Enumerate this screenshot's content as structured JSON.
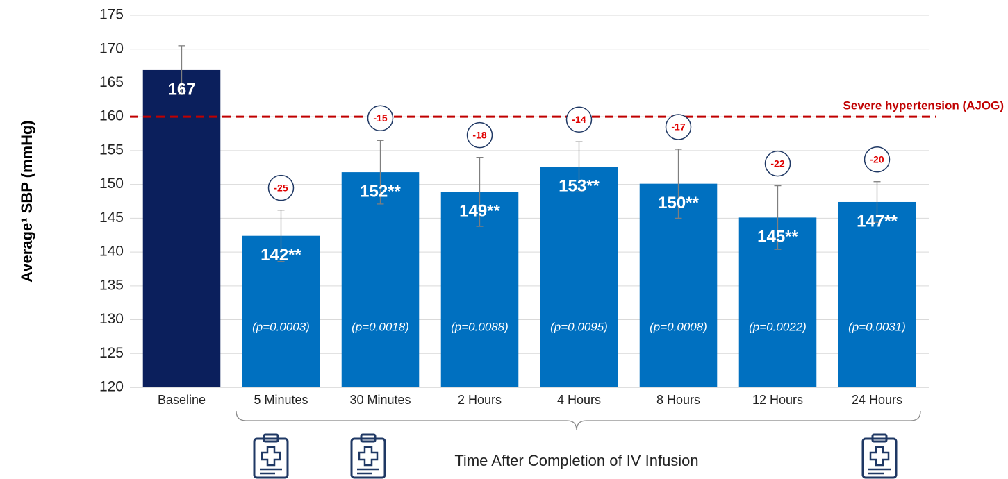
{
  "chart_data": {
    "type": "bar",
    "y_axis_label": "Average¹ SBP (mmHg)",
    "x_axis_label": "Time After Completion of IV Infusion",
    "categories": [
      "Baseline",
      "5 Minutes",
      "30 Minutes",
      "2 Hours",
      "4 Hours",
      "8 Hours",
      "12 Hours",
      "24 Hours"
    ],
    "values": [
      166.9,
      142.4,
      151.8,
      148.9,
      152.6,
      150.1,
      145.1,
      147.4
    ],
    "value_labels": [
      "167",
      "142**",
      "152**",
      "149**",
      "153**",
      "150**",
      "145**",
      "147**"
    ],
    "errors": [
      3.6,
      3.8,
      4.7,
      5.1,
      3.7,
      5.1,
      4.7,
      3.0
    ],
    "changes": [
      null,
      -25,
      -15,
      -18,
      -14,
      -17,
      -22,
      -20
    ],
    "p_labels": [
      null,
      "(p=0.0003)",
      "(p=0.0018)",
      "(p=0.0088)",
      "(p=0.0095)",
      "(p=0.0008)",
      "(p=0.0022)",
      "(p=0.0031)"
    ],
    "colors": [
      "#0b1f5c",
      "#0070c0",
      "#0070c0",
      "#0070c0",
      "#0070c0",
      "#0070c0",
      "#0070c0",
      "#0070c0"
    ],
    "reference_line": {
      "value": 160,
      "label": "Severe hypertension (AJOG)",
      "color": "#c00000"
    },
    "ylim": [
      120,
      175
    ],
    "yticks": [
      120,
      125,
      130,
      135,
      140,
      145,
      150,
      155,
      160,
      165,
      170,
      175
    ],
    "grid": true
  }
}
